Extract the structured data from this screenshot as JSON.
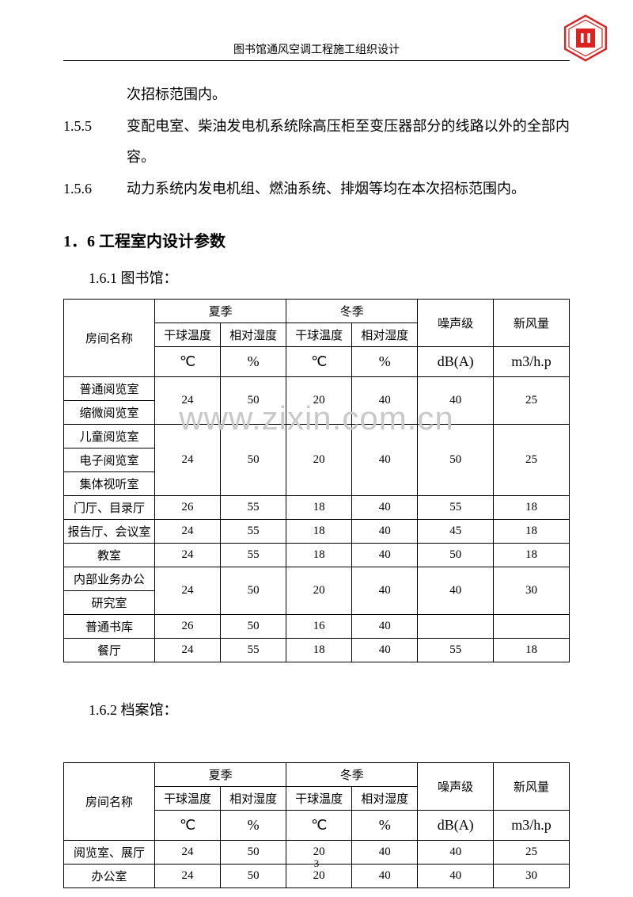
{
  "header_title": "图书馆通风空调工程施工组织设计",
  "watermark": "www.zixin.com.cn",
  "page_number": "3",
  "logo": {
    "stroke": "#d22",
    "fill": "#d22"
  },
  "text": {
    "cont_line": "次招标范围内。",
    "p155_num": "1.5.5",
    "p155_txt": "变配电室、柴油发电机系统除高压柜至变压器部分的线路以外的全部内容。",
    "p156_num": "1.5.6",
    "p156_txt": "动力系统内发电机组、燃油系统、排烟等均在本次招标范围内。",
    "sec16": "1．6 工程室内设计参数",
    "sub161": "1.6.1 图书馆：",
    "sub162": "1.6.2 档案馆："
  },
  "table_headers": {
    "room": "房间名称",
    "summer": "夏季",
    "winter": "冬季",
    "drybulb": "干球温度",
    "rh": "相对湿度",
    "noise": "噪声级",
    "freshair": "新风量",
    "u_c": "℃",
    "u_pct": "%",
    "u_db": "dB(A)",
    "u_m3": "m3/h.p"
  },
  "table1": {
    "rows": [
      {
        "names": [
          "普通阅览室",
          "缩微阅览室"
        ],
        "v": [
          "24",
          "50",
          "20",
          "40",
          "40",
          "25"
        ]
      },
      {
        "names": [
          "儿童阅览室",
          "电子阅览室",
          "集体视听室"
        ],
        "v": [
          "24",
          "50",
          "20",
          "40",
          "50",
          "25"
        ]
      },
      {
        "names": [
          "门厅、目录厅"
        ],
        "v": [
          "26",
          "55",
          "18",
          "40",
          "55",
          "18"
        ]
      },
      {
        "names": [
          "报告厅、会议室"
        ],
        "v": [
          "24",
          "55",
          "18",
          "40",
          "45",
          "18"
        ]
      },
      {
        "names": [
          "教室"
        ],
        "v": [
          "24",
          "55",
          "18",
          "40",
          "50",
          "18"
        ]
      },
      {
        "names": [
          "内部业务办公",
          "研究室"
        ],
        "v": [
          "24",
          "50",
          "20",
          "40",
          "40",
          "30"
        ]
      },
      {
        "names": [
          "普通书库"
        ],
        "v": [
          "26",
          "50",
          "16",
          "40",
          "",
          ""
        ]
      },
      {
        "names": [
          "餐厅"
        ],
        "v": [
          "24",
          "55",
          "18",
          "40",
          "55",
          "18"
        ]
      }
    ]
  },
  "table2": {
    "rows": [
      {
        "names": [
          "阅览室、展厅"
        ],
        "v": [
          "24",
          "50",
          "20",
          "40",
          "40",
          "25"
        ]
      },
      {
        "names": [
          "办公室"
        ],
        "v": [
          "24",
          "50",
          "20",
          "40",
          "40",
          "30"
        ]
      }
    ]
  }
}
